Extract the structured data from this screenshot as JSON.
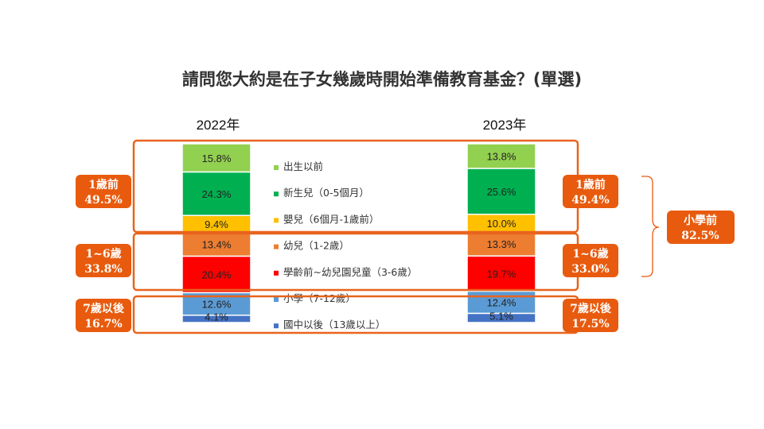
{
  "title": "請問您大約是在子女幾歲時開始準備教育基金？(單選)",
  "chart_data": {
    "type": "bar",
    "stacked": true,
    "categories": [
      "2022年",
      "2023年"
    ],
    "series": [
      {
        "name": "出生以前",
        "color": "#92d050",
        "values": [
          15.8,
          13.8
        ],
        "labels": [
          "15.8%",
          "13.8%"
        ]
      },
      {
        "name": "新生兒（0-5個月）",
        "color": "#00b050",
        "values": [
          24.3,
          25.6
        ],
        "labels": [
          "24.3%",
          "25.6%"
        ]
      },
      {
        "name": "嬰兒（6個月-1歲前）",
        "color": "#ffc000",
        "values": [
          9.4,
          10.0
        ],
        "labels": [
          "9.4%",
          "10.0%"
        ]
      },
      {
        "name": "幼兒（1-2歲）",
        "color": "#ed7d31",
        "values": [
          13.4,
          13.3
        ],
        "labels": [
          "13.4%",
          "13.3%"
        ]
      },
      {
        "name": "學齡前~幼兒園兒童（3-6歲）",
        "color": "#ff0000",
        "values": [
          20.4,
          19.7
        ],
        "labels": [
          "20.4%",
          "19.7%"
        ]
      },
      {
        "name": "小學（7-12歲）",
        "color": "#5b9bd5",
        "values": [
          12.6,
          12.4
        ],
        "labels": [
          "12.6%",
          "12.4%"
        ]
      },
      {
        "name": "國中以後（13歲以上）",
        "color": "#4472c4",
        "values": [
          4.1,
          5.1
        ],
        "labels": [
          "4.1%",
          "5.1%"
        ]
      }
    ],
    "ylim": [
      0,
      100
    ],
    "legend_position": "center"
  },
  "groups": [
    {
      "label": "1歲前",
      "left": "49.5%",
      "right": "49.4%"
    },
    {
      "label": "1~6歲",
      "left": "33.8%",
      "right": "33.0%"
    },
    {
      "label": "7歲以後",
      "left": "16.7%",
      "right": "17.5%"
    }
  ],
  "preschool": {
    "label": "小學前",
    "value": "82.5%"
  },
  "colors": {
    "accent": "#e85b0e",
    "outline": "#e8641d"
  }
}
